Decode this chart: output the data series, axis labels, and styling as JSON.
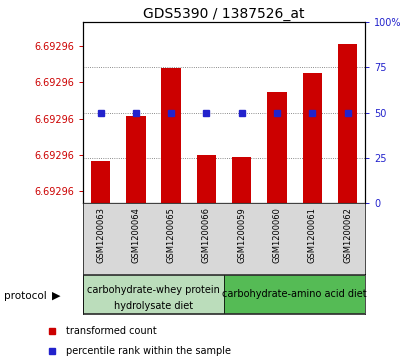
{
  "title": "GDS5390 / 1387526_at",
  "samples": [
    "GSM1200063",
    "GSM1200064",
    "GSM1200065",
    "GSM1200066",
    "GSM1200059",
    "GSM1200060",
    "GSM1200061",
    "GSM1200062"
  ],
  "bar_values": [
    6.6929585,
    6.6929622,
    6.6929662,
    6.692959,
    6.6929588,
    6.6929642,
    6.6929658,
    6.6929682
  ],
  "percentile_values": [
    50,
    50,
    50,
    50,
    50,
    50,
    50,
    50
  ],
  "y_min": 6.692955,
  "y_max": 6.69297,
  "ytick_positions": [
    6.692956,
    6.692959,
    6.692962,
    6.692965,
    6.692968
  ],
  "ytick_labels": [
    "6.69296",
    "6.69296",
    "6.69296",
    "6.69296",
    "6.69296"
  ],
  "ylim_right": [
    0,
    100
  ],
  "yticks_right": [
    0,
    25,
    50,
    75,
    100
  ],
  "bar_color": "#cc0000",
  "percentile_color": "#2222cc",
  "group1_color": "#bbddbb",
  "group2_color": "#55bb55",
  "group1_label_line1": "carbohydrate-whey protein",
  "group1_label_line2": "hydrolysate diet",
  "group2_label": "carbohydrate-amino acid diet",
  "protocol_label": "protocol",
  "legend_bar_label": "transformed count",
  "legend_perc_label": "percentile rank within the sample",
  "sample_bg_color": "#d8d8d8",
  "title_fontsize": 10,
  "tick_fontsize": 7,
  "sample_fontsize": 6,
  "group_fontsize": 7,
  "legend_fontsize": 7
}
